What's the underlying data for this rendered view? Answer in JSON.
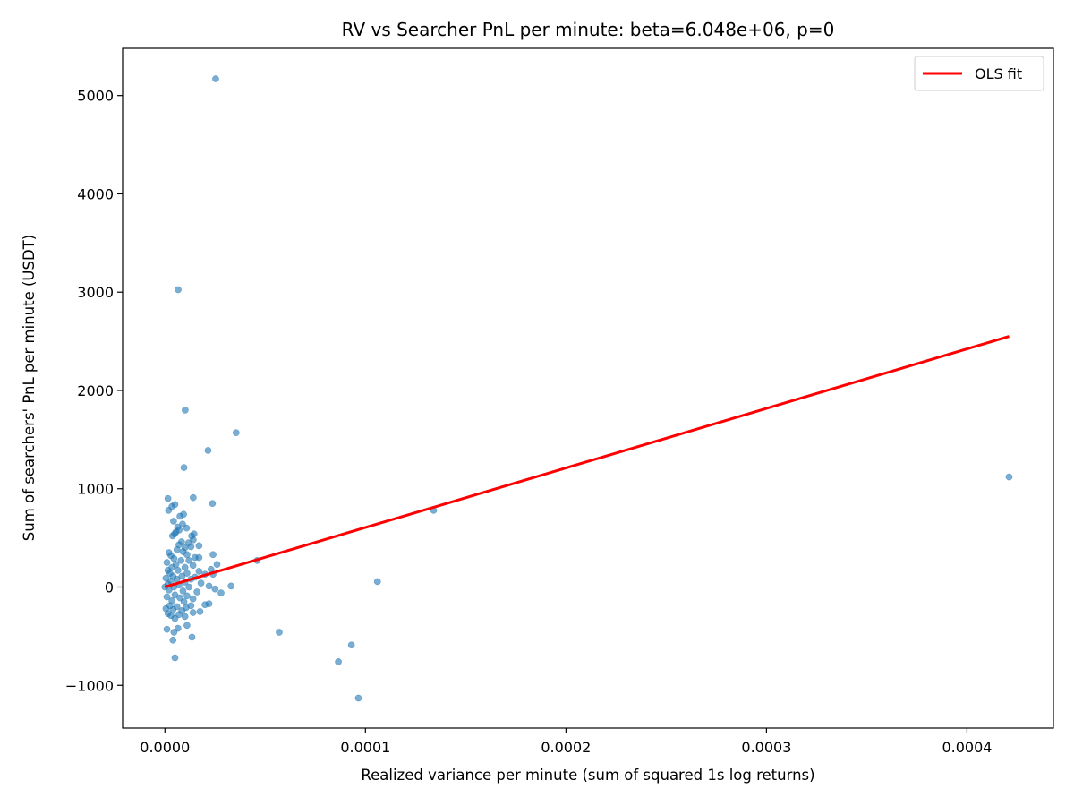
{
  "chart_data": {
    "type": "scatter",
    "title": "RV vs Searcher PnL per minute: beta=6.048e+06, p=0",
    "xlabel": "Realized variance per minute (sum of squared 1s log returns)",
    "ylabel": "Sum of searchers' PnL per minute (USDT)",
    "xlim": [
      -2.11e-05,
      0.0004431
    ],
    "ylim": [
      -1435,
      5480
    ],
    "xticks": [
      0,
      0.0001,
      0.0002,
      0.0003,
      0.0004
    ],
    "xtick_labels": [
      "0.0000",
      "0.0001",
      "0.0002",
      "0.0003",
      "0.0004"
    ],
    "yticks": [
      -1000,
      0,
      1000,
      2000,
      3000,
      4000,
      5000
    ],
    "ytick_labels": [
      "−1000",
      "0",
      "1000",
      "2000",
      "3000",
      "4000",
      "5000"
    ],
    "grid": false,
    "legend_position": "top-right",
    "colors": {
      "points": "#1f77b4",
      "fit": "#ff0000"
    },
    "series": [
      {
        "kind": "scatter",
        "points": [
          [
            2.53e-05,
            5170
          ],
          [
            6.6e-06,
            3025
          ],
          [
            1.01e-05,
            1800
          ],
          [
            3.55e-05,
            1570
          ],
          [
            2.15e-05,
            1390
          ],
          [
            9.5e-06,
            1215
          ],
          [
            1.41e-05,
            910
          ],
          [
            1.5e-06,
            900
          ],
          [
            2.37e-05,
            850
          ],
          [
            5e-06,
            840
          ],
          [
            3.5e-06,
            820
          ],
          [
            1.8e-06,
            780
          ],
          [
            9.3e-06,
            740
          ],
          [
            7.5e-06,
            720
          ],
          [
            4.3e-06,
            670
          ],
          [
            8.8e-06,
            640
          ],
          [
            6.3e-06,
            610
          ],
          [
            1.08e-05,
            600
          ],
          [
            7.1e-06,
            580
          ],
          [
            5.5e-06,
            560
          ],
          [
            4.8e-06,
            540
          ],
          [
            1.45e-05,
            540
          ],
          [
            3.8e-06,
            520
          ],
          [
            1.33e-05,
            520
          ],
          [
            1.41e-05,
            480
          ],
          [
            8.3e-06,
            460
          ],
          [
            1.18e-05,
            450
          ],
          [
            7e-06,
            430
          ],
          [
            1.7e-05,
            420
          ],
          [
            1.3e-05,
            410
          ],
          [
            1e-05,
            400
          ],
          [
            6e-06,
            380
          ],
          [
            2e-06,
            350
          ],
          [
            9e-06,
            360
          ],
          [
            3e-06,
            320
          ],
          [
            1.1e-05,
            330
          ],
          [
            2.4e-05,
            330
          ],
          [
            1.5e-05,
            300
          ],
          [
            1.7e-05,
            300
          ],
          [
            4.5e-06,
            290
          ],
          [
            8e-06,
            270
          ],
          [
            1.2e-05,
            270
          ],
          [
            1e-06,
            250
          ],
          [
            4.6e-05,
            270
          ],
          [
            2.6e-05,
            230
          ],
          [
            5.5e-06,
            230
          ],
          [
            1.4e-05,
            220
          ],
          [
            3.5e-06,
            200
          ],
          [
            1e-05,
            200
          ],
          [
            2.3e-05,
            180
          ],
          [
            1.5e-06,
            170
          ],
          [
            6.5e-06,
            170
          ],
          [
            1.7e-05,
            160
          ],
          [
            2.5e-06,
            140
          ],
          [
            1.1e-05,
            140
          ],
          [
            2e-05,
            130
          ],
          [
            2.4e-05,
            130
          ],
          [
            4e-06,
            110
          ],
          [
            8.5e-06,
            110
          ],
          [
            1.5e-05,
            100
          ],
          [
            5e-07,
            90
          ],
          [
            6e-06,
            80
          ],
          [
            1.3e-05,
            80
          ],
          [
            3e-06,
            60
          ],
          [
            0.000106,
            55
          ],
          [
            1e-05,
            50
          ],
          [
            1.8e-05,
            40
          ],
          [
            1.5e-06,
            30
          ],
          [
            7e-06,
            20
          ],
          [
            2.2e-05,
            10
          ],
          [
            3.3e-05,
            10
          ],
          [
            0.0,
            0
          ],
          [
            4.5e-06,
            0
          ],
          [
            1.2e-05,
            0
          ],
          [
            2.5e-05,
            -20
          ],
          [
            2e-06,
            -30
          ],
          [
            9e-06,
            -40
          ],
          [
            1.6e-05,
            -50
          ],
          [
            2.8e-05,
            -60
          ],
          [
            5e-06,
            -80
          ],
          [
            1.1e-05,
            -90
          ],
          [
            1e-06,
            -100
          ],
          [
            7.5e-06,
            -110
          ],
          [
            1.4e-05,
            -120
          ],
          [
            3.5e-06,
            -140
          ],
          [
            9.5e-06,
            -150
          ],
          [
            2.2e-05,
            -170
          ],
          [
            2e-05,
            -180
          ],
          [
            2.5e-06,
            -190
          ],
          [
            1.3e-05,
            -190
          ],
          [
            6e-06,
            -200
          ],
          [
            1.05e-05,
            -210
          ],
          [
            5e-07,
            -220
          ],
          [
            4e-06,
            -230
          ],
          [
            8.5e-06,
            -240
          ],
          [
            1.75e-05,
            -250
          ],
          [
            1.4e-05,
            -260
          ],
          [
            1.5e-06,
            -270
          ],
          [
            7e-06,
            -280
          ],
          [
            3e-06,
            -290
          ],
          [
            1e-05,
            -300
          ],
          [
            5e-06,
            -320
          ],
          [
            1.1e-05,
            -390
          ],
          [
            1e-06,
            -430
          ],
          [
            6.5e-06,
            -420
          ],
          [
            4.5e-06,
            -460
          ],
          [
            5.7e-05,
            -460
          ],
          [
            1.35e-05,
            -510
          ],
          [
            4e-06,
            -540
          ],
          [
            9.3e-05,
            -590
          ],
          [
            5e-06,
            -720
          ],
          [
            8.65e-05,
            -760
          ],
          [
            9.65e-05,
            -1130
          ],
          [
            0.000134,
            780
          ],
          [
            0.000421,
            1120
          ]
        ]
      },
      {
        "kind": "line",
        "name": "OLS fit",
        "points": [
          [
            0.0,
            0
          ],
          [
            0.000421,
            2550
          ]
        ]
      }
    ]
  }
}
